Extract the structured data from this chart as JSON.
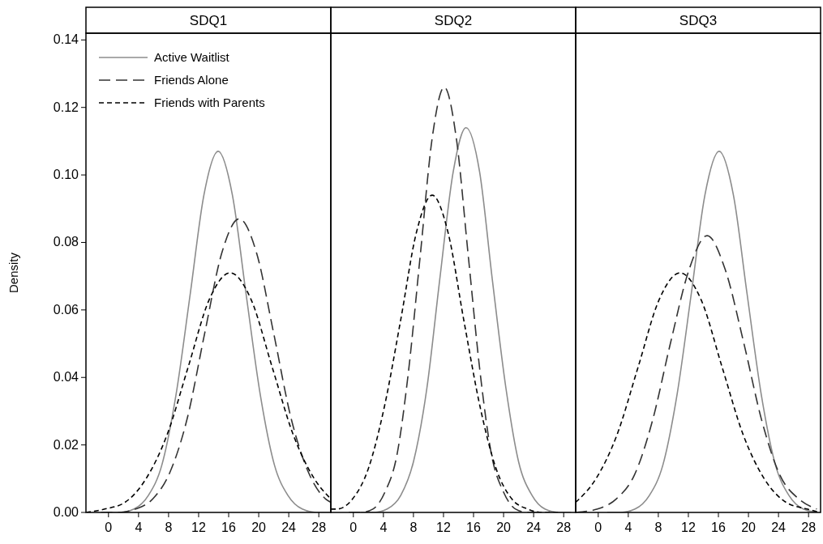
{
  "chart_data": [
    {
      "type": "line",
      "title": "SDQ1",
      "ylabel": "Density",
      "xlim": [
        -3,
        29.6
      ],
      "ylim": [
        0,
        0.142
      ],
      "xticks": [
        0,
        4,
        8,
        12,
        16,
        20,
        24,
        28
      ],
      "yticks": [
        {
          "value": 0,
          "label": "0.00"
        },
        {
          "value": 0.02,
          "label": "0.02"
        },
        {
          "value": 0.04,
          "label": "0.04"
        },
        {
          "value": 0.06,
          "label": "0.06"
        },
        {
          "value": 0.08,
          "label": "0.08"
        },
        {
          "value": 0.1,
          "label": "0.10"
        },
        {
          "value": 0.12,
          "label": "0.12"
        },
        {
          "value": 0.14,
          "label": "0.14"
        }
      ],
      "legend": "top left",
      "grid": false,
      "marker": "none",
      "series": [
        {
          "name": "Active Waitlist",
          "color": "#8c8c8c",
          "line_style": "solid",
          "x": [
            -0.3,
            1.6,
            3.4,
            5.3,
            7.1,
            9.0,
            10.9,
            12.7,
            14.6,
            16.5,
            18.3,
            20.2,
            22.1,
            23.9,
            25.8,
            27.7,
            29.5
          ],
          "values": [
            0,
            0,
            0.001,
            0.005,
            0.014,
            0.035,
            0.065,
            0.094,
            0.107,
            0.094,
            0.065,
            0.035,
            0.014,
            0.005,
            0.001,
            0,
            0
          ]
        },
        {
          "name": "Friends Alone",
          "color": "#333333",
          "line_style": "dashed",
          "x": [
            -1.0,
            1.3,
            3.6,
            5.9,
            8.2,
            10.5,
            12.8,
            15.1,
            17.4,
            19.7,
            22.0,
            24.3,
            26.6,
            28.9,
            29.6
          ],
          "values": [
            0,
            0,
            0.001,
            0.004,
            0.012,
            0.028,
            0.053,
            0.077,
            0.087,
            0.077,
            0.053,
            0.028,
            0.012,
            0.004,
            0.003
          ]
        },
        {
          "name": "Friends with Parents",
          "color": "#000000",
          "line_style": "dashed",
          "x": [
            -3,
            -0.5,
            2.2,
            5.0,
            7.8,
            10.6,
            13.4,
            16.2,
            19.0,
            21.8,
            24.6,
            27.4,
            29.6
          ],
          "values": [
            0,
            0.001,
            0.003,
            0.01,
            0.023,
            0.043,
            0.063,
            0.071,
            0.063,
            0.043,
            0.023,
            0.01,
            0.004
          ]
        }
      ]
    },
    {
      "type": "line",
      "title": "SDQ2",
      "xlim": [
        -3,
        29.6
      ],
      "ylim": [
        0,
        0.142
      ],
      "xticks": [
        0,
        4,
        8,
        12,
        16,
        20,
        24,
        28
      ],
      "tick_labels": "x",
      "grid": false,
      "marker": "none",
      "series": [
        {
          "color": "#8c8c8c",
          "line_style": "solid",
          "x": [
            1.0,
            2.8,
            4.5,
            6.3,
            8.0,
            9.8,
            11.5,
            13.3,
            15.0,
            16.8,
            18.5,
            20.3,
            22.0,
            23.8,
            25.5,
            27.3,
            29.0
          ],
          "values": [
            0,
            0,
            0.001,
            0.005,
            0.015,
            0.037,
            0.069,
            0.101,
            0.114,
            0.101,
            0.069,
            0.037,
            0.015,
            0.005,
            0.001,
            0,
            0
          ]
        },
        {
          "color": "#333333",
          "line_style": "dashed",
          "x": [
            -0.6,
            1.0,
            2.6,
            4.2,
            5.8,
            7.3,
            8.9,
            10.5,
            12.1,
            13.7,
            15.3,
            16.9,
            18.4,
            20.0,
            21.6,
            23.2,
            24.8
          ],
          "values": [
            0,
            0,
            0.001,
            0.006,
            0.017,
            0.041,
            0.076,
            0.111,
            0.126,
            0.111,
            0.076,
            0.041,
            0.017,
            0.006,
            0.001,
            0,
            0
          ]
        },
        {
          "color": "#000000",
          "line_style": "dashed",
          "x": [
            -3,
            -2.2,
            -0.1,
            2.0,
            4.1,
            6.3,
            8.4,
            10.5,
            12.6,
            14.7,
            16.9,
            19.0,
            21.1,
            23.2,
            25.3,
            27.5
          ],
          "values": [
            0.001,
            0.001,
            0.004,
            0.013,
            0.031,
            0.057,
            0.083,
            0.094,
            0.083,
            0.057,
            0.031,
            0.013,
            0.004,
            0.001,
            0,
            0
          ]
        }
      ]
    },
    {
      "type": "line",
      "title": "SDQ3",
      "xlim": [
        -3,
        29.6
      ],
      "ylim": [
        0,
        0.142
      ],
      "xticks": [
        0,
        4,
        8,
        12,
        16,
        20,
        24,
        28
      ],
      "tick_labels": "x",
      "grid": false,
      "marker": "none",
      "series": [
        {
          "color": "#8c8c8c",
          "line_style": "solid",
          "x": [
            1.2,
            3.0,
            4.9,
            6.8,
            8.6,
            10.5,
            12.4,
            14.2,
            16.1,
            18.0,
            19.8,
            21.7,
            23.6,
            25.4,
            27.3,
            29.2
          ],
          "values": [
            0,
            0,
            0.001,
            0.005,
            0.014,
            0.035,
            0.065,
            0.094,
            0.107,
            0.094,
            0.065,
            0.035,
            0.014,
            0.005,
            0.001,
            0
          ]
        },
        {
          "color": "#333333",
          "line_style": "dashed",
          "x": [
            -3,
            -0.1,
            2.4,
            4.8,
            7.2,
            9.6,
            12.1,
            14.5,
            16.9,
            19.4,
            21.8,
            24.2,
            26.7,
            29.1
          ],
          "values": [
            0,
            0.001,
            0.004,
            0.011,
            0.027,
            0.05,
            0.072,
            0.082,
            0.072,
            0.05,
            0.027,
            0.011,
            0.004,
            0.001
          ]
        },
        {
          "color": "#000000",
          "line_style": "dashed",
          "x": [
            -3,
            -0.3,
            2.5,
            5.3,
            8.1,
            10.9,
            13.7,
            16.5,
            19.3,
            22.1,
            25.0,
            27.8,
            29.6
          ],
          "values": [
            0.003,
            0.01,
            0.023,
            0.043,
            0.063,
            0.071,
            0.063,
            0.043,
            0.023,
            0.01,
            0.003,
            0.001,
            0
          ]
        }
      ]
    }
  ]
}
